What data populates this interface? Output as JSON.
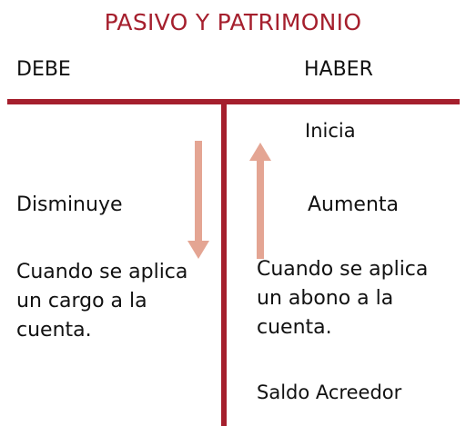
{
  "title": "PASIVO Y PATRIMONIO",
  "columns": {
    "left": "DEBE",
    "right": "HABER"
  },
  "right_top_label": "Inicia",
  "left_effect": "Disminuye",
  "right_effect": "Aumenta",
  "left_description": "Cuando se aplica un cargo a la cuenta.",
  "right_description": "Cuando se aplica un abono a la cuenta.",
  "balance_label": "Saldo Acreedor",
  "colors": {
    "title": "#a51f2d",
    "t_account": "#a51f2d",
    "arrows": "#e4a593",
    "text": "#111111"
  },
  "icons": {
    "down": "arrow-down-icon",
    "up": "arrow-up-icon"
  }
}
